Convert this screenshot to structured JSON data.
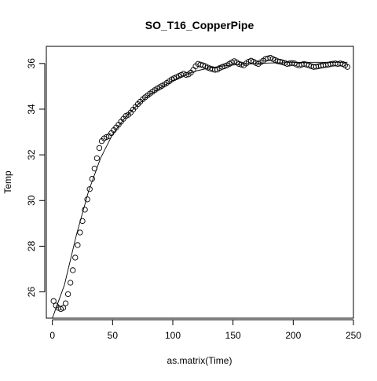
{
  "chart_data": {
    "type": "scatter",
    "title": "SO_T16_CopperPipe",
    "xlabel": "as.matrix(Time)",
    "ylabel": "Temp",
    "xlim": [
      -5,
      250
    ],
    "ylim": [
      24.85,
      36.75
    ],
    "x_ticks": [
      0,
      50,
      100,
      150,
      200,
      250
    ],
    "x_tick_labels": [
      "0",
      "50",
      "100",
      "150",
      "200",
      "250"
    ],
    "y_ticks": [
      26,
      28,
      30,
      32,
      34,
      36
    ],
    "y_tick_labels": [
      "26",
      "28",
      "30",
      "32",
      "34",
      "36"
    ],
    "grid": false,
    "legend": "none",
    "marker": "open-circle",
    "series": [
      {
        "role": "observed",
        "style": "points",
        "x": [
          1,
          3,
          5,
          7,
          9,
          11,
          13,
          15,
          17,
          19,
          21,
          23,
          25,
          27,
          29,
          31,
          33,
          35,
          37,
          39,
          41,
          43,
          45,
          47,
          49,
          51,
          53,
          55,
          57,
          59,
          61,
          63,
          65,
          67,
          69,
          71,
          73,
          75,
          77,
          79,
          81,
          83,
          85,
          87,
          89,
          91,
          93,
          95,
          97,
          99,
          101,
          103,
          105,
          107,
          109,
          111,
          113,
          115,
          117,
          119,
          121,
          123,
          125,
          127,
          129,
          131,
          133,
          135,
          137,
          139,
          141,
          143,
          145,
          147,
          149,
          151,
          153,
          155,
          157,
          159,
          161,
          163,
          165,
          167,
          169,
          171,
          173,
          175,
          177,
          179,
          181,
          183,
          185,
          187,
          189,
          191,
          193,
          195,
          197,
          199,
          201,
          203,
          205,
          207,
          209,
          211,
          213,
          215,
          217,
          219,
          221,
          223,
          225,
          227,
          229,
          231,
          233,
          235,
          237,
          239,
          241,
          243,
          245
        ],
        "y": [
          25.6,
          25.4,
          25.3,
          25.25,
          25.3,
          25.5,
          25.9,
          26.4,
          26.95,
          27.5,
          28.05,
          28.6,
          29.1,
          29.6,
          30.05,
          30.5,
          30.95,
          31.4,
          31.85,
          32.3,
          32.6,
          32.72,
          32.78,
          32.82,
          32.95,
          33.08,
          33.2,
          33.32,
          33.45,
          33.58,
          33.7,
          33.75,
          33.85,
          33.98,
          34.1,
          34.22,
          34.33,
          34.43,
          34.52,
          34.6,
          34.68,
          34.76,
          34.83,
          34.9,
          34.96,
          35.02,
          35.08,
          35.15,
          35.22,
          35.3,
          35.35,
          35.4,
          35.45,
          35.5,
          35.55,
          35.5,
          35.52,
          35.6,
          35.72,
          35.88,
          35.98,
          35.95,
          35.92,
          35.88,
          35.82,
          35.78,
          35.75,
          35.72,
          35.73,
          35.8,
          35.85,
          35.88,
          35.92,
          35.98,
          36.05,
          36.1,
          36.05,
          35.98,
          35.95,
          35.92,
          36.0,
          36.08,
          36.12,
          36.08,
          36.02,
          35.98,
          36.05,
          36.12,
          36.2,
          36.22,
          36.25,
          36.2,
          36.15,
          36.1,
          36.08,
          36.05,
          36.02,
          35.98,
          36.0,
          36.02,
          36.0,
          35.95,
          35.92,
          35.95,
          35.98,
          35.95,
          35.92,
          35.88,
          35.85,
          35.86,
          35.88,
          35.9,
          35.92,
          35.93,
          35.95,
          35.97,
          35.99,
          36.0,
          35.98,
          36.0,
          35.98,
          35.92,
          35.85
        ]
      },
      {
        "role": "fitted",
        "style": "line",
        "x": [
          0,
          10,
          20,
          30,
          40,
          50,
          60,
          70,
          80,
          90,
          100,
          110,
          120,
          130,
          140,
          150,
          160,
          170,
          180,
          190,
          200,
          210,
          220,
          230,
          240,
          245
        ],
        "y": [
          24.85,
          26.3,
          28.5,
          30.4,
          31.85,
          32.9,
          33.6,
          34.15,
          34.6,
          34.95,
          35.25,
          35.5,
          35.68,
          35.8,
          35.88,
          35.93,
          35.97,
          36.0,
          36.02,
          36.03,
          36.04,
          36.05,
          36.05,
          36.05,
          36.05,
          36.05
        ]
      }
    ]
  }
}
